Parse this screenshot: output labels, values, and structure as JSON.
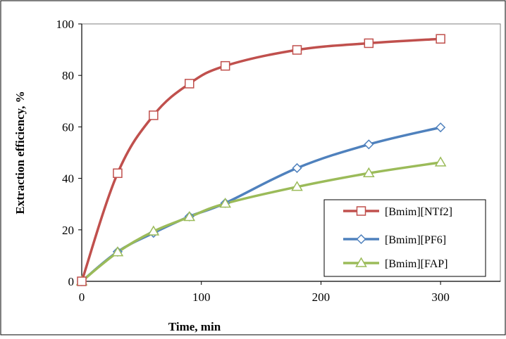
{
  "chart_data": {
    "type": "line",
    "title": "",
    "xlabel": "Time, min",
    "ylabel": "Extraction efficiency, %",
    "xlim": [
      0,
      350
    ],
    "ylim": [
      0,
      100
    ],
    "x_ticks": [
      0,
      100,
      200,
      300
    ],
    "y_ticks": [
      0,
      20,
      40,
      60,
      80,
      100
    ],
    "grid": false,
    "legend_position": "bottom-right",
    "series": [
      {
        "name": "[Bmim][NTf2]",
        "color": "#c0504d",
        "marker": "square",
        "x": [
          0,
          30,
          60,
          90,
          120,
          180,
          240,
          300
        ],
        "y": [
          0,
          42,
          64.5,
          76.8,
          83.7,
          89.9,
          92.5,
          94.2
        ]
      },
      {
        "name": "[Bmim][PF6]",
        "color": "#4f81bd",
        "marker": "diamond",
        "x": [
          0,
          30,
          60,
          90,
          120,
          180,
          240,
          300
        ],
        "y": [
          0,
          11.5,
          18.8,
          25.2,
          30.4,
          44,
          53.2,
          59.8
        ]
      },
      {
        "name": "[Bmim][FAP]",
        "color": "#9bbb59",
        "marker": "triangle",
        "x": [
          0,
          30,
          60,
          90,
          120,
          180,
          240,
          300
        ],
        "y": [
          0,
          11.3,
          19.4,
          25,
          30.2,
          36.7,
          42,
          46.2
        ]
      }
    ]
  }
}
